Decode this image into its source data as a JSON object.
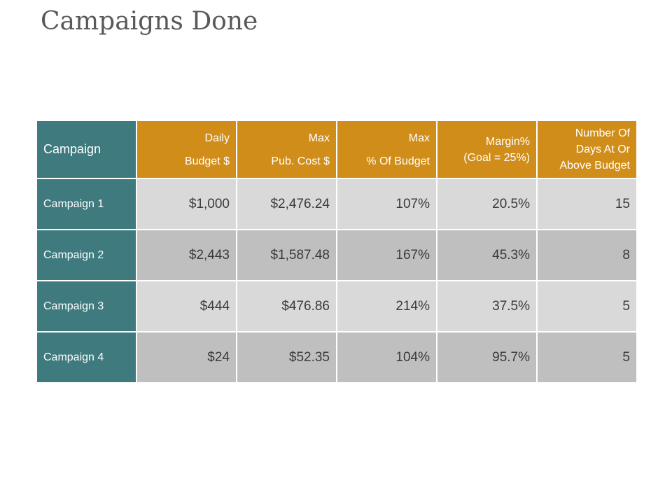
{
  "title": "Campaigns Done",
  "table": {
    "corner_label": "Campaign",
    "headers": [
      {
        "line1": "Daily",
        "line2": "Budget $"
      },
      {
        "line1": "Max",
        "line2": "Pub. Cost $"
      },
      {
        "line1": "Max",
        "line2": "% Of Budget"
      },
      {
        "line1": "Margin%",
        "line2": "(Goal = 25%)"
      },
      {
        "line1": "Number Of",
        "line2": "Days At Or",
        "line3": "Above Budget"
      }
    ],
    "rows": [
      {
        "label": "Campaign 1",
        "values": [
          "$1,000",
          "$2,476.24",
          "107%",
          "20.5%",
          "15"
        ]
      },
      {
        "label": "Campaign 2",
        "values": [
          "$2,443",
          "$1,587.48",
          "167%",
          "45.3%",
          "8"
        ]
      },
      {
        "label": "Campaign 3",
        "values": [
          "$444",
          "$476.86",
          "214%",
          "37.5%",
          "5"
        ]
      },
      {
        "label": "Campaign 4",
        "values": [
          "$24",
          "$52.35",
          "104%",
          "95.7%",
          "5"
        ]
      }
    ]
  },
  "colors": {
    "teal": "#3e7a7e",
    "orange": "#d08d1a",
    "light_gray": "#d9d9d9",
    "dark_gray": "#bfbfbf"
  }
}
